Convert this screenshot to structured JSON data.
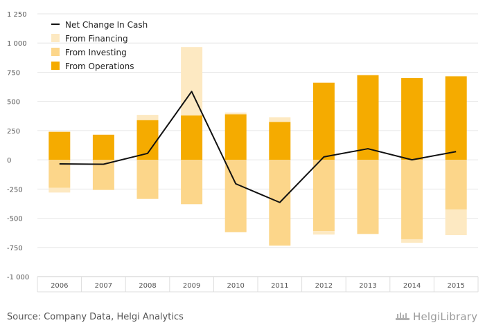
{
  "chart_data": {
    "type": "bar",
    "stacked": true,
    "categories": [
      "2006",
      "2007",
      "2008",
      "2009",
      "2010",
      "2011",
      "2012",
      "2013",
      "2014",
      "2015"
    ],
    "series": [
      {
        "name": "From Operations",
        "kind": "bar",
        "color": "#f5ab00",
        "values": [
          240,
          215,
          340,
          380,
          390,
          325,
          660,
          725,
          700,
          715
        ]
      },
      {
        "name": "From Investing",
        "kind": "bar",
        "color": "#fcd68a",
        "values": [
          -240,
          -258,
          -335,
          -380,
          -620,
          -735,
          -610,
          -635,
          -680,
          -425
        ]
      },
      {
        "name": "From Financing",
        "kind": "bar",
        "color": "#fde9c2",
        "values": [
          -40,
          0,
          45,
          585,
          15,
          40,
          -30,
          0,
          -30,
          -220
        ]
      },
      {
        "name": "Net Change In Cash",
        "kind": "line",
        "color": "#111111",
        "values": [
          -35,
          -38,
          55,
          585,
          -205,
          -365,
          25,
          95,
          0,
          70
        ]
      }
    ],
    "ylim": [
      -1000,
      1250
    ],
    "yticks": [
      -1000,
      -750,
      -500,
      -250,
      0,
      250,
      500,
      750,
      1000,
      1250
    ],
    "ytick_labels": [
      "-1 000",
      "-750",
      "-500",
      "-250",
      "0",
      "250",
      "500",
      "750",
      "1 000",
      "1 250"
    ],
    "grid": true,
    "legend": [
      "Net Change In Cash",
      "From Financing",
      "From Investing",
      "From Operations"
    ],
    "legend_position": "top-left"
  },
  "footer": {
    "source": "Source: Company Data, Helgi Analytics",
    "brand": "HelgiLibrary"
  }
}
